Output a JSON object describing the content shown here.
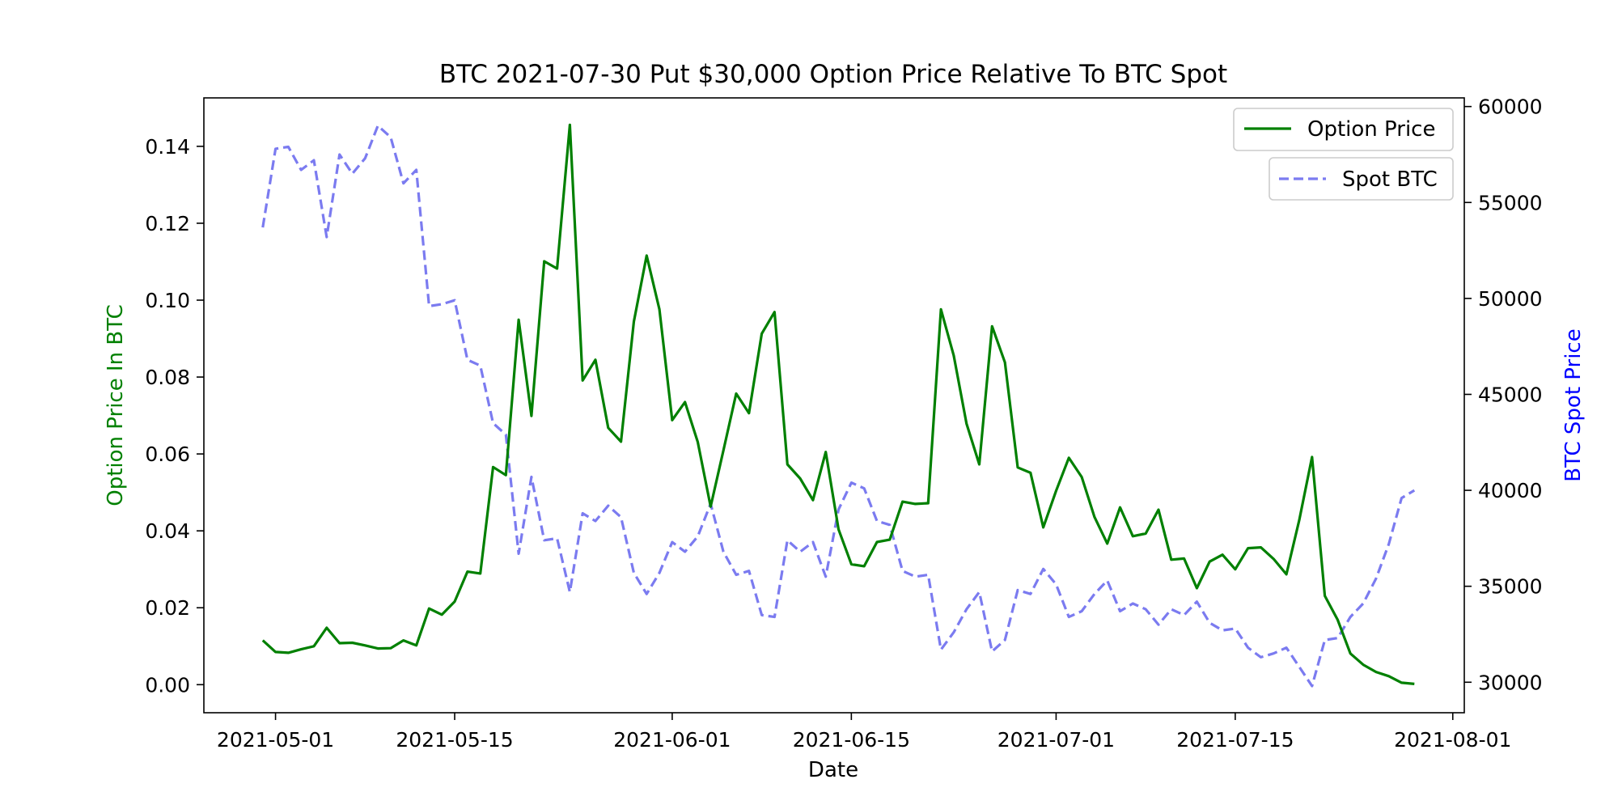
{
  "chart_data": {
    "type": "line",
    "title": "BTC 2021-07-30 Put $30,000 Option Price Relative To BTC Spot",
    "xlabel": "Date",
    "ylabel": "Option Price In BTC",
    "ylabel_right": "BTC Spot Price",
    "colors": {
      "option": "#008000",
      "spot": "#7b7bf0",
      "left_label": "#008000",
      "right_label": "#0000ff"
    },
    "x_ticks": [
      "2021-05-01",
      "2021-05-15",
      "2021-06-01",
      "2021-06-15",
      "2021-07-01",
      "2021-07-15",
      "2021-08-01"
    ],
    "x_tick_days": [
      0,
      14,
      31,
      45,
      61,
      75,
      92
    ],
    "xlim_days": [
      -5.6,
      92.9
    ],
    "y_ticks": [
      "0.00",
      "0.02",
      "0.04",
      "0.06",
      "0.08",
      "0.10",
      "0.12",
      "0.14"
    ],
    "y_tick_values": [
      0,
      0.02,
      0.04,
      0.06,
      0.08,
      0.1,
      0.12,
      0.14
    ],
    "ylim": [
      -0.0073,
      0.1526
    ],
    "y2_ticks": [
      "30000",
      "35000",
      "40000",
      "45000",
      "50000",
      "55000",
      "60000"
    ],
    "y2_tick_values": [
      30000,
      35000,
      40000,
      45000,
      50000,
      55000,
      60000
    ],
    "y2lim": [
      28410,
      60450
    ],
    "legend": {
      "option": "Option Price",
      "spot": "Spot BTC"
    },
    "series": [
      {
        "name": "Option Price",
        "axis": "left",
        "style": "solid",
        "days": [
          -1.0,
          0.0,
          1.0,
          2.0,
          3.0,
          4.0,
          5.0,
          6.0,
          7.0,
          8.0,
          9.0,
          10.0,
          11.0,
          12.0,
          13.0,
          14.0,
          15.0,
          16.0,
          17.0,
          18.0,
          19.0,
          20.0,
          21.0,
          22.0,
          23.0,
          24.0,
          25.0,
          26.0,
          27.0,
          28.0,
          29.0,
          30.0,
          31.0,
          32.0,
          33.0,
          34.0,
          35.0,
          36.0,
          37.0,
          38.0,
          39.0,
          40.0,
          41.0,
          42.0,
          43.0,
          44.0,
          45.0,
          46.0,
          47.0,
          48.0,
          49.0,
          50.0,
          51.0,
          52.0,
          53.0,
          54.0,
          55.0,
          56.0,
          57.0,
          58.0,
          59.0,
          60.0,
          61.0,
          62.0,
          63.0,
          64.0,
          65.0,
          66.0,
          67.0,
          68.0,
          69.0,
          70.0,
          71.0,
          72.0,
          73.0,
          74.0,
          75.0,
          76.0,
          77.0,
          78.0,
          79.0,
          80.0,
          81.0,
          82.0,
          83.0,
          84.0,
          85.0,
          86.0,
          87.0,
          88.0,
          89.0
        ],
        "values": [
          0.0115,
          0.0085,
          0.0083,
          0.0092,
          0.01,
          0.0148,
          0.0108,
          0.0109,
          0.0102,
          0.0094,
          0.0095,
          0.0115,
          0.0102,
          0.0198,
          0.0182,
          0.0216,
          0.0294,
          0.0289,
          0.0566,
          0.0545,
          0.0949,
          0.0699,
          0.1101,
          0.1082,
          0.1456,
          0.0791,
          0.0845,
          0.0668,
          0.0632,
          0.0944,
          0.1116,
          0.0976,
          0.0688,
          0.0735,
          0.0631,
          0.0463,
          0.0609,
          0.0757,
          0.0706,
          0.0913,
          0.0969,
          0.0573,
          0.0536,
          0.048,
          0.0605,
          0.0404,
          0.0313,
          0.0308,
          0.0371,
          0.0377,
          0.0476,
          0.047,
          0.0472,
          0.0976,
          0.0856,
          0.0679,
          0.0573,
          0.0932,
          0.0838,
          0.0565,
          0.0551,
          0.0409,
          0.0504,
          0.059,
          0.054,
          0.0436,
          0.0367,
          0.0461,
          0.0386,
          0.0393,
          0.0455,
          0.0325,
          0.0328,
          0.0251,
          0.032,
          0.0338,
          0.03,
          0.0355,
          0.0357,
          0.0327,
          0.0287,
          0.0428,
          0.0592,
          0.0231,
          0.0169,
          0.0081,
          0.0052,
          0.0033,
          0.0022,
          0.0005,
          0.0002
        ]
      },
      {
        "name": "Spot BTC",
        "axis": "right",
        "style": "dashed",
        "days": [
          -1.0,
          0.0,
          1.0,
          2.0,
          3.0,
          4.0,
          5.0,
          6.0,
          7.0,
          8.0,
          9.0,
          10.0,
          11.0,
          12.0,
          13.0,
          14.0,
          15.0,
          16.0,
          17.0,
          18.0,
          19.0,
          20.0,
          21.0,
          22.0,
          23.0,
          24.0,
          25.0,
          26.0,
          27.0,
          28.0,
          29.0,
          30.0,
          31.0,
          32.0,
          33.0,
          34.0,
          35.0,
          36.0,
          37.0,
          38.0,
          39.0,
          40.0,
          41.0,
          42.0,
          43.0,
          44.0,
          45.0,
          46.0,
          47.0,
          48.0,
          49.0,
          50.0,
          51.0,
          52.0,
          53.0,
          54.0,
          55.0,
          56.0,
          57.0,
          58.0,
          59.0,
          60.0,
          61.0,
          62.0,
          63.0,
          64.0,
          65.0,
          66.0,
          67.0,
          68.0,
          69.0,
          70.0,
          71.0,
          72.0,
          73.0,
          74.0,
          75.0,
          76.0,
          77.0,
          78.0,
          79.0,
          80.0,
          81.0,
          82.0,
          83.0,
          84.0,
          85.0,
          86.0,
          87.0,
          88.0,
          89.0
        ],
        "values": [
          53700,
          57800,
          57900,
          56700,
          57200,
          53200,
          57500,
          56500,
          57300,
          59000,
          58400,
          56000,
          56700,
          49600,
          49700,
          49900,
          46800,
          46500,
          43500,
          42900,
          36700,
          40700,
          37400,
          37500,
          34700,
          38800,
          38400,
          39200,
          38600,
          35700,
          34600,
          35700,
          37300,
          36800,
          37600,
          39300,
          36800,
          35600,
          35800,
          33500,
          33400,
          37400,
          36800,
          37300,
          35500,
          39000,
          40400,
          40100,
          38400,
          38200,
          35800,
          35500,
          35600,
          31700,
          32600,
          33800,
          34700,
          31600,
          32200,
          34800,
          34600,
          35900,
          35100,
          33400,
          33700,
          34600,
          35300,
          33700,
          34100,
          33800,
          33000,
          33800,
          33500,
          34200,
          33100,
          32700,
          32800,
          31800,
          31300,
          31500,
          31800,
          30800,
          29800,
          32200,
          32300,
          33400,
          34100,
          35400,
          37200,
          39600,
          40000
        ]
      }
    ]
  }
}
